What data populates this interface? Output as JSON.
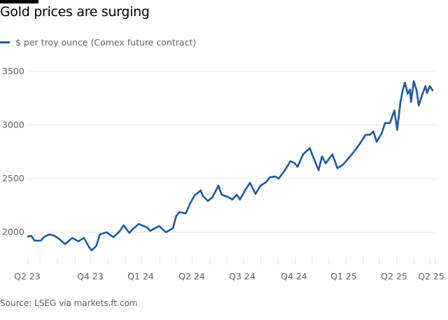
{
  "title": "Gold prices are surging",
  "source": "Source: LSEG via markets.ft.com",
  "chart_data": {
    "type": "line",
    "title": "Gold prices are surging",
    "xlabel": "",
    "ylabel": "",
    "ylim": [
      1750,
      3500
    ],
    "yticks": [
      2000,
      2500,
      3000,
      3500
    ],
    "xtick_labels": [
      "Q2 23",
      "Q4 23",
      "Q1 24",
      "Q2 24",
      "Q3 24",
      "Q4 24",
      "Q1 25",
      "Q2 25",
      "Q2 25"
    ],
    "grid": "horizontal",
    "legend": "top-left",
    "series": [
      {
        "name": "$ per troy ounce (Comex future contract)",
        "color": "#1a5aa1",
        "x": [
          "2023-06-12",
          "2023-06-18",
          "2023-06-24",
          "2023-07-05",
          "2023-07-11",
          "2023-07-20",
          "2023-07-30",
          "2023-08-08",
          "2023-08-18",
          "2023-08-31",
          "2023-09-11",
          "2023-09-21",
          "2023-09-30",
          "2023-10-05",
          "2023-10-13",
          "2023-10-20",
          "2023-11-01",
          "2023-11-13",
          "2023-11-23",
          "2023-12-02",
          "2023-12-12",
          "2023-12-19",
          "2023-12-29",
          "2024-01-13",
          "2024-01-19",
          "2024-02-04",
          "2024-02-16",
          "2024-02-29",
          "2024-03-06",
          "2024-03-12",
          "2024-03-23",
          "2024-03-31",
          "2024-04-08",
          "2024-04-19",
          "2024-04-23",
          "2024-05-02",
          "2024-05-10",
          "2024-05-21",
          "2024-05-27",
          "2024-06-09",
          "2024-06-15",
          "2024-06-23",
          "2024-06-29",
          "2024-07-08",
          "2024-07-17",
          "2024-07-27",
          "2024-08-05",
          "2024-08-15",
          "2024-08-22",
          "2024-09-01",
          "2024-09-07",
          "2024-09-18",
          "2024-09-28",
          "2024-10-05",
          "2024-10-11",
          "2024-10-21",
          "2024-11-02",
          "2024-11-08",
          "2024-11-18",
          "2024-11-24",
          "2024-12-01",
          "2024-12-13",
          "2024-12-22",
          "2025-01-01",
          "2025-01-14",
          "2025-01-24",
          "2025-02-02",
          "2025-02-11",
          "2025-02-19",
          "2025-02-25",
          "2025-03-03",
          "2025-03-12",
          "2025-03-18",
          "2025-03-27",
          "2025-04-04",
          "2025-04-09",
          "2025-04-15",
          "2025-04-19",
          "2025-04-23",
          "2025-04-28",
          "2025-05-02",
          "2025-05-04",
          "2025-05-09",
          "2025-05-14",
          "2025-05-18",
          "2025-05-24",
          "2025-05-30",
          "2025-06-02",
          "2025-06-07",
          "2025-06-12"
        ],
        "values": [
          1961,
          1967,
          1922,
          1922,
          1955,
          1980,
          1967,
          1935,
          1890,
          1948,
          1916,
          1948,
          1864,
          1831,
          1870,
          1980,
          2000,
          1955,
          2000,
          2065,
          1994,
          2032,
          2078,
          2045,
          2013,
          2058,
          2000,
          2039,
          2156,
          2188,
          2175,
          2270,
          2344,
          2390,
          2338,
          2292,
          2325,
          2435,
          2351,
          2325,
          2305,
          2351,
          2305,
          2390,
          2461,
          2357,
          2435,
          2467,
          2513,
          2520,
          2500,
          2578,
          2662,
          2649,
          2610,
          2727,
          2785,
          2707,
          2578,
          2707,
          2643,
          2727,
          2597,
          2630,
          2707,
          2772,
          2837,
          2909,
          2909,
          2941,
          2844,
          2922,
          3019,
          3019,
          3136,
          2954,
          3214,
          3324,
          3396,
          3292,
          3331,
          3214,
          3409,
          3324,
          3182,
          3279,
          3363,
          3298,
          3363,
          3324
        ]
      }
    ]
  }
}
